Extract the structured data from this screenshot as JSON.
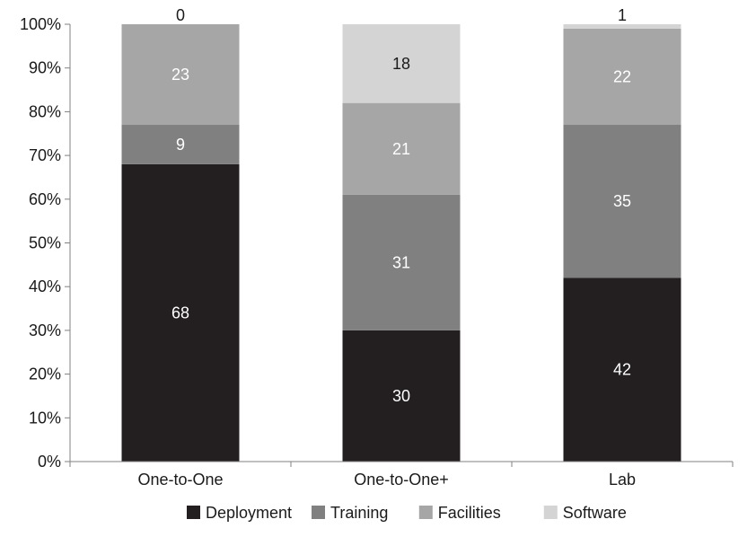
{
  "chart_data": {
    "type": "bar",
    "stacked": true,
    "percent_stacked": true,
    "categories": [
      "One-to-One",
      "One-to-One+",
      "Lab"
    ],
    "series": [
      {
        "name": "Deployment",
        "values": [
          68,
          30,
          42
        ],
        "color": "#231f20"
      },
      {
        "name": "Training",
        "values": [
          9,
          31,
          35
        ],
        "color": "#808080"
      },
      {
        "name": "Facilities",
        "values": [
          23,
          21,
          22
        ],
        "color": "#a6a6a6"
      },
      {
        "name": "Software",
        "values": [
          0,
          18,
          1
        ],
        "color": "#d4d4d4"
      }
    ],
    "data_labels": [
      [
        "68",
        "30",
        "42"
      ],
      [
        "9",
        "31",
        "35"
      ],
      [
        "23",
        "21",
        "22"
      ],
      [
        "0",
        "18",
        "1"
      ]
    ],
    "y_ticks": [
      "0%",
      "10%",
      "20%",
      "30%",
      "40%",
      "50%",
      "60%",
      "70%",
      "80%",
      "90%",
      "100%"
    ],
    "ylim": [
      0,
      100
    ],
    "grid": false,
    "legend_position": "bottom"
  }
}
